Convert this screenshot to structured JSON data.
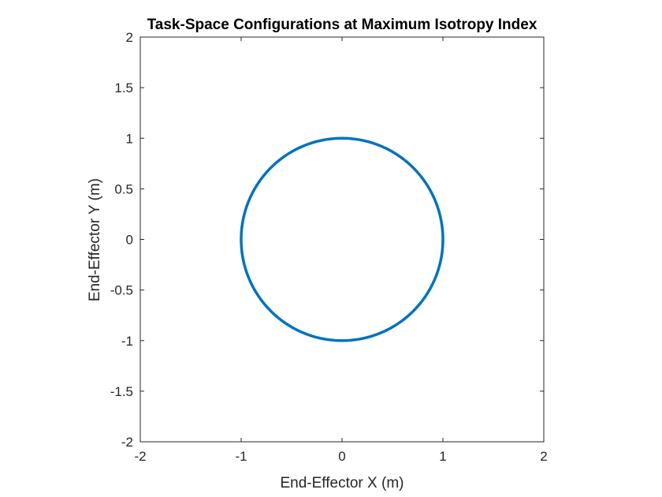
{
  "chart_data": {
    "type": "line",
    "title": "Task-Space Configurations at Maximum Isotropy Index",
    "xlabel": "End-Effector X (m)",
    "ylabel": "End-Effector Y (m)",
    "xlim": [
      -2,
      2
    ],
    "ylim": [
      -2,
      2
    ],
    "xticks": [
      -2,
      -1,
      0,
      1,
      2
    ],
    "yticks": [
      -2,
      -1.5,
      -1,
      -0.5,
      0,
      0.5,
      1,
      1.5,
      2
    ],
    "xtick_labels": [
      "-2",
      "-1",
      "0",
      "1",
      "2"
    ],
    "ytick_labels": [
      "-2",
      "-1.5",
      "-1",
      "-0.5",
      "0",
      "0.5",
      "1",
      "1.5",
      "2"
    ],
    "grid": false,
    "box": true,
    "aspect": "equal",
    "series": [
      {
        "color": "#0072BD",
        "shape": "circle",
        "center": [
          0,
          0
        ],
        "radius": 1,
        "x": [
          1,
          0.866,
          0.5,
          0,
          -0.5,
          -0.866,
          -1,
          -0.866,
          -0.5,
          0,
          0.5,
          0.866,
          1
        ],
        "y": [
          0,
          0.5,
          0.866,
          1,
          0.866,
          0.5,
          0,
          -0.5,
          -0.866,
          -1,
          -0.866,
          -0.5,
          0
        ]
      }
    ]
  }
}
